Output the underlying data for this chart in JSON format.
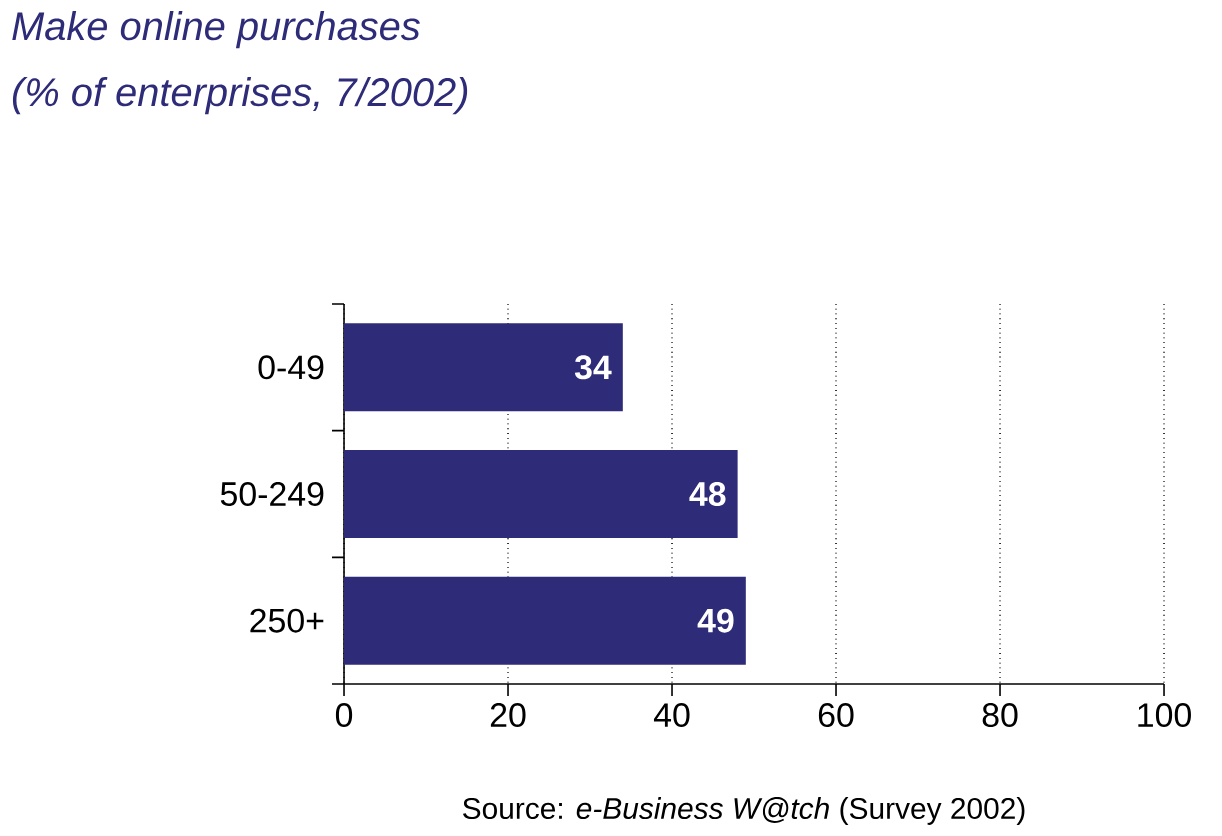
{
  "chart_data": {
    "type": "bar",
    "orientation": "horizontal",
    "title": "Make online purchases",
    "subtitle": "(% of enterprises, 7/2002)",
    "categories": [
      "0-49",
      "50-249",
      "250+"
    ],
    "values": [
      34,
      48,
      49
    ],
    "color": "#2e2b78",
    "xlim": [
      0,
      100
    ],
    "xticks": [
      0,
      20,
      40,
      60,
      80,
      100
    ],
    "grid": "x",
    "data_labels": true,
    "annotations": [
      "Source: *e-Business W@tch* (Survey 2002)"
    ]
  }
}
